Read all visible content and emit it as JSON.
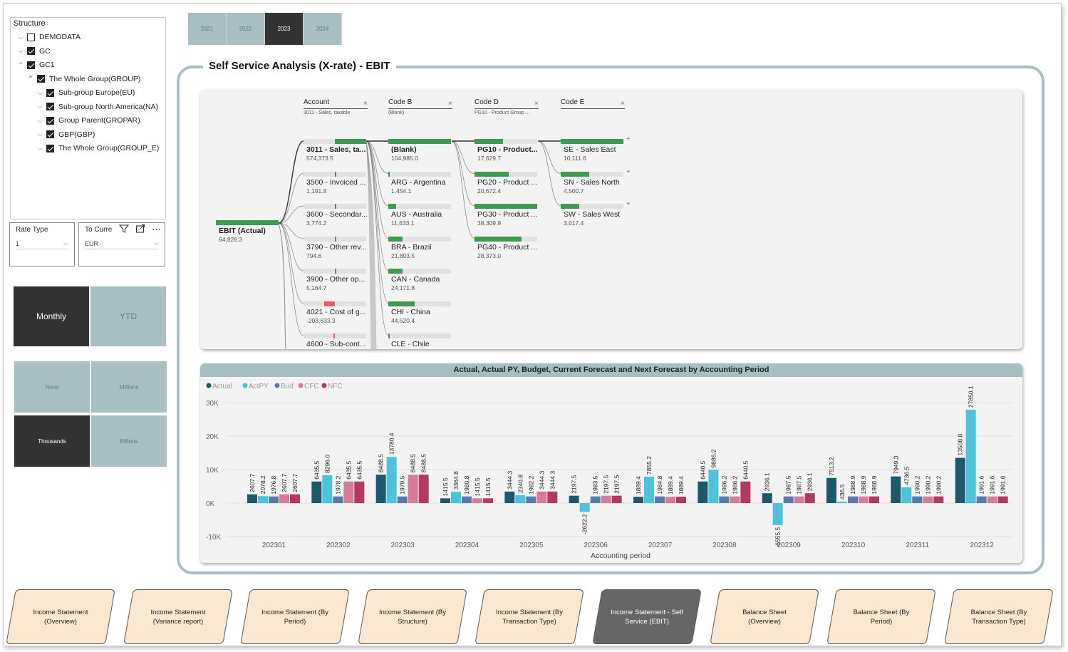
{
  "structure": {
    "header": "Structure",
    "items": [
      {
        "label": "DEMODATA",
        "chev": "⌵",
        "checked": false
      },
      {
        "label": "GC",
        "chev": "⌵",
        "checked": true
      },
      {
        "label": "GC1",
        "chev": "⌃",
        "checked": true
      },
      {
        "label": "The Whole Group(GROUP)",
        "chev": "⌃",
        "checked": true
      },
      {
        "label": "Sub-group Europe(EU)",
        "chev": "⌵",
        "checked": true
      },
      {
        "label": "Sub-group North America(NA)",
        "chev": "⌵",
        "checked": true
      },
      {
        "label": "Group Parent(GROPAR)",
        "chev": "⌵",
        "checked": true
      },
      {
        "label": "GBP(GBP)",
        "chev": "⌵",
        "checked": true
      },
      {
        "label": "The Whole Group(GROUP_E)",
        "chev": "⌵",
        "checked": true
      }
    ]
  },
  "rate_type": {
    "label": "Rate Type",
    "value": "1"
  },
  "to_currency": {
    "label": "To Curre",
    "value": "EUR"
  },
  "period_mode": {
    "monthly": "Monthly",
    "ytd": "YTD"
  },
  "scale": {
    "none": "None",
    "millions": "Millions",
    "thousands": "Thousands",
    "billions": "Billions"
  },
  "years": [
    {
      "label": "2021",
      "active": false
    },
    {
      "label": "2022",
      "active": false
    },
    {
      "label": "2023",
      "active": true
    },
    {
      "label": "2024",
      "active": false
    }
  ],
  "main_title": "Self Service Analysis (X-rate) - EBIT",
  "decomp": {
    "levels": [
      {
        "title": "Account",
        "sub": "3011 - Sales, taxable"
      },
      {
        "title": "Code B",
        "sub": "(Blank)"
      },
      {
        "title": "Code D",
        "sub": "PG10 - Product Group ..."
      },
      {
        "title": "Code E",
        "sub": ""
      }
    ],
    "root": {
      "name": "EBIT (Actual)",
      "value": "64,826.3"
    },
    "account": [
      {
        "name": "3011 - Sales, ta...",
        "value": "574,373.5"
      },
      {
        "name": "3500 - Invoiced ...",
        "value": "1,191.8"
      },
      {
        "name": "3600 - Secondar...",
        "value": "3,774.2"
      },
      {
        "name": "3790 - Other rev...",
        "value": "794.6"
      },
      {
        "name": "3900 - Other op...",
        "value": "5,164.7"
      },
      {
        "name": "4021 - Cost of g...",
        "value": "-203,633.3"
      },
      {
        "name": "4600 - Sub-cont...",
        "value": ""
      }
    ],
    "code_b": [
      {
        "name": "(Blank)",
        "value": "104,985.0"
      },
      {
        "name": "ARG - Argentina",
        "value": "1,454.1"
      },
      {
        "name": "AUS - Australia",
        "value": "11,633.1"
      },
      {
        "name": "BRA - Brazil",
        "value": "21,803.5"
      },
      {
        "name": "CAN - Canada",
        "value": "24,171.8"
      },
      {
        "name": "CHI - China",
        "value": "44,520.4"
      },
      {
        "name": "CLE - Chile",
        "value": ""
      }
    ],
    "code_d": [
      {
        "name": "PG10 - Product...",
        "value": "17,629.7"
      },
      {
        "name": "PG20 - Product ...",
        "value": "20,672.4"
      },
      {
        "name": "PG30 - Product ...",
        "value": "38,309.9"
      },
      {
        "name": "PG40 - Product ...",
        "value": "28,373.0"
      }
    ],
    "code_e": [
      {
        "name": "SE - Sales East",
        "value": "10,111.6"
      },
      {
        "name": "SN - Sales North",
        "value": "4,500.7"
      },
      {
        "name": "SW - Sales West",
        "value": "3,017.4"
      }
    ]
  },
  "chart_data": {
    "type": "bar",
    "title": "Actual, Actual PY, Budget, Current Forecast and Next Forecast by Accounting Period",
    "xlabel": "Accounting period",
    "ylabel": "",
    "ylim": [
      -10000,
      30000
    ],
    "yticks": [
      "30K",
      "20K",
      "10K",
      "0K",
      "-10K"
    ],
    "categories": [
      "202301",
      "202302",
      "202303",
      "202304",
      "202305",
      "202306",
      "202307",
      "202308",
      "202309",
      "202310",
      "202311",
      "202312"
    ],
    "colors": [
      "#1c5a6b",
      "#4ec2d8",
      "#5a78a8",
      "#d87b99",
      "#b23a62"
    ],
    "series": [
      {
        "name": "Actual",
        "values": [
          2607.7,
          6435.5,
          8488.5,
          1415.5,
          3444.3,
          2197.5,
          1889.4,
          6440.5,
          2936.1,
          7513.2,
          7949.3,
          13508.8
        ]
      },
      {
        "name": "ActPY",
        "values": [
          2078.2,
          8296.0,
          13780.4,
          3364.8,
          2340.8,
          -2622.2,
          7855.2,
          9886.2,
          -6555.5,
          436.5,
          4736.5,
          27850.1
        ]
      },
      {
        "name": "Bud",
        "values": [
          1976.8,
          1978.2,
          1979.5,
          1980.8,
          1982.2,
          1983.5,
          1984.8,
          1986.2,
          1987.5,
          1988.9,
          1990.2,
          1991.6
        ]
      },
      {
        "name": "CFC",
        "values": [
          2607.7,
          6435.5,
          8488.5,
          1415.5,
          3444.3,
          2197.5,
          1889.4,
          1986.2,
          1987.5,
          1988.9,
          1990.2,
          1991.6
        ]
      },
      {
        "name": "NFC",
        "values": [
          2607.7,
          6435.5,
          8488.5,
          1415.5,
          3444.3,
          2197.5,
          1889.4,
          6440.5,
          2936.1,
          1988.9,
          1990.2,
          1991.6
        ]
      }
    ],
    "legend_position": "top-left",
    "grid": true
  },
  "nav": [
    {
      "label": "Income Statement (Overview)",
      "active": false
    },
    {
      "label": "Income Statement (Variance report)",
      "active": false
    },
    {
      "label": "Income Statement (By Period)",
      "active": false
    },
    {
      "label": "Income Statement (By Structure)",
      "active": false
    },
    {
      "label": "Income Statement (By Transaction Type)",
      "active": false
    },
    {
      "label": "Income Statement - Self Service (EBIT)",
      "active": true
    },
    {
      "label": "Balance Sheet (Overview)",
      "active": false
    },
    {
      "label": "Balance Sheet (By Period)",
      "active": false
    },
    {
      "label": "Balance Sheet (By Transaction Type)",
      "active": false
    }
  ]
}
